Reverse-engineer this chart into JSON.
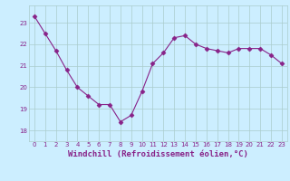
{
  "x": [
    0,
    1,
    2,
    3,
    4,
    5,
    6,
    7,
    8,
    9,
    10,
    11,
    12,
    13,
    14,
    15,
    16,
    17,
    18,
    19,
    20,
    21,
    22,
    23
  ],
  "y": [
    23.3,
    22.5,
    21.7,
    20.8,
    20.0,
    19.6,
    19.2,
    19.2,
    18.4,
    18.7,
    19.8,
    21.1,
    21.6,
    22.3,
    22.4,
    22.0,
    21.8,
    21.7,
    21.6,
    21.8,
    21.8,
    21.8,
    21.5,
    21.1
  ],
  "line_color": "#882288",
  "marker": "D",
  "marker_size": 2.5,
  "bg_color": "#cceeff",
  "grid_color": "#aacccc",
  "xlabel": "Windchill (Refroidissement éolien,°C)",
  "xlabel_color": "#882288",
  "tick_label_color": "#882288",
  "ylim": [
    17.5,
    23.8
  ],
  "yticks": [
    18,
    19,
    20,
    21,
    22,
    23
  ],
  "xticks": [
    0,
    1,
    2,
    3,
    4,
    5,
    6,
    7,
    8,
    9,
    10,
    11,
    12,
    13,
    14,
    15,
    16,
    17,
    18,
    19,
    20,
    21,
    22,
    23
  ],
  "figsize": [
    3.2,
    2.0
  ],
  "dpi": 100
}
